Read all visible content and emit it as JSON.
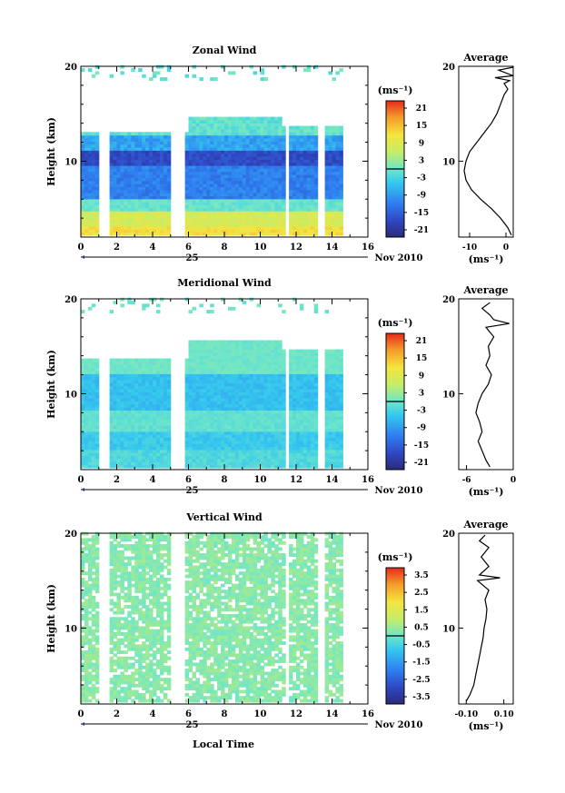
{
  "figure": {
    "xlabel": "Local Time",
    "date_day": "25",
    "date_month": "Nov 2010"
  },
  "chart_data": [
    {
      "type": "heatmap",
      "title": "Zonal Wind",
      "ylabel": "Height (km)",
      "xlim": [
        0,
        16
      ],
      "ylim": [
        2,
        20
      ],
      "x_ticks": [
        0,
        2,
        4,
        6,
        8,
        10,
        12,
        14,
        16
      ],
      "y_ticks": [
        10,
        20
      ],
      "data_gaps_hours": [
        [
          0.9,
          1.6
        ],
        [
          5.0,
          5.9
        ],
        [
          11.3,
          11.6
        ],
        [
          13.1,
          13.5
        ],
        [
          14.5,
          16
        ]
      ],
      "colorbar": {
        "unit": "(ms⁻¹)",
        "ticks": [
          "21",
          "15",
          "9",
          "3",
          "-3",
          "-9",
          "-15",
          "-21"
        ],
        "range": [
          -24,
          24
        ]
      },
      "profile": {
        "title": "Average",
        "unit": "(ms⁻¹)",
        "x_ticks": [
          "-10",
          "0"
        ],
        "xlim": [
          -13,
          2
        ],
        "y_ticks": [
          10,
          20
        ],
        "ylim": [
          2,
          20
        ],
        "points": [
          [
            1.5,
            2.2
          ],
          [
            0.5,
            3
          ],
          [
            -1.5,
            4
          ],
          [
            -4,
            5
          ],
          [
            -7,
            6
          ],
          [
            -9.5,
            7
          ],
          [
            -11,
            8
          ],
          [
            -11.5,
            9
          ],
          [
            -11,
            10
          ],
          [
            -10,
            11
          ],
          [
            -8,
            12
          ],
          [
            -6,
            13
          ],
          [
            -4,
            14
          ],
          [
            -2.5,
            15
          ],
          [
            -1.5,
            16
          ],
          [
            -0.5,
            17
          ],
          [
            0.5,
            17.6
          ],
          [
            -0.5,
            18.2
          ],
          [
            1,
            18.5
          ],
          [
            -3,
            18.8
          ],
          [
            2,
            19
          ],
          [
            0,
            19.3
          ],
          [
            -2,
            19.6
          ],
          [
            2,
            19.9
          ]
        ]
      }
    },
    {
      "type": "heatmap",
      "title": "Meridional Wind",
      "ylabel": "Height (km)",
      "xlim": [
        0,
        16
      ],
      "ylim": [
        2,
        20
      ],
      "x_ticks": [
        0,
        2,
        4,
        6,
        8,
        10,
        12,
        14,
        16
      ],
      "y_ticks": [
        10,
        20
      ],
      "data_gaps_hours": [
        [
          0.9,
          1.6
        ],
        [
          5.0,
          5.9
        ],
        [
          11.3,
          11.6
        ],
        [
          13.1,
          13.5
        ],
        [
          14.5,
          16
        ]
      ],
      "colorbar": {
        "unit": "(ms⁻¹)",
        "ticks": [
          "21",
          "15",
          "9",
          "3",
          "-3",
          "-9",
          "-15",
          "-21"
        ],
        "range": [
          -24,
          24
        ]
      },
      "profile": {
        "title": "Average",
        "unit": "(ms⁻¹)",
        "x_ticks": [
          "-6",
          "0"
        ],
        "xlim": [
          -7,
          0
        ],
        "y_ticks": [
          10,
          20
        ],
        "ylim": [
          2,
          20
        ],
        "points": [
          [
            -3,
            2.3
          ],
          [
            -3.5,
            3
          ],
          [
            -4,
            4
          ],
          [
            -4.5,
            5
          ],
          [
            -4,
            6
          ],
          [
            -4.3,
            7
          ],
          [
            -4.8,
            8
          ],
          [
            -4.5,
            9
          ],
          [
            -4,
            10
          ],
          [
            -3.2,
            11
          ],
          [
            -2.8,
            12
          ],
          [
            -3.5,
            13
          ],
          [
            -3,
            14
          ],
          [
            -3.2,
            15
          ],
          [
            -2.5,
            16
          ],
          [
            -3,
            16.5
          ],
          [
            -3.5,
            17
          ],
          [
            -0.5,
            17.4
          ],
          [
            -2.5,
            17.8
          ],
          [
            -3,
            18.3
          ],
          [
            -4,
            19
          ],
          [
            -3,
            19.6
          ]
        ]
      }
    },
    {
      "type": "heatmap",
      "title": "Vertical Wind",
      "ylabel": "Height (km)",
      "xlim": [
        0,
        16
      ],
      "ylim": [
        2,
        20
      ],
      "x_ticks": [
        0,
        2,
        4,
        6,
        8,
        10,
        12,
        14,
        16
      ],
      "y_ticks": [
        10,
        20
      ],
      "data_gaps_hours": [
        [
          0.9,
          1.6
        ],
        [
          5.0,
          5.9
        ],
        [
          11.3,
          11.6
        ],
        [
          13.1,
          13.5
        ],
        [
          14.5,
          16
        ]
      ],
      "colorbar": {
        "unit": "(ms⁻¹)",
        "ticks": [
          "3.5",
          "2.5",
          "1.5",
          "0.5",
          "-0.5",
          "-1.5",
          "-2.5",
          "-3.5"
        ],
        "range": [
          -4,
          4
        ]
      },
      "profile": {
        "title": "Average",
        "unit": "(ms⁻¹)",
        "x_ticks": [
          "-0.10",
          "0.10"
        ],
        "xlim": [
          -0.14,
          0.15
        ],
        "y_ticks": [
          10,
          20
        ],
        "ylim": [
          2,
          20
        ],
        "points": [
          [
            -0.1,
            2.3
          ],
          [
            -0.08,
            3
          ],
          [
            -0.06,
            4
          ],
          [
            -0.05,
            5
          ],
          [
            -0.04,
            6
          ],
          [
            -0.03,
            7
          ],
          [
            -0.02,
            8
          ],
          [
            -0.01,
            9
          ],
          [
            -0.005,
            10
          ],
          [
            0.005,
            11
          ],
          [
            0.01,
            12
          ],
          [
            0.0,
            13
          ],
          [
            0.02,
            14
          ],
          [
            -0.04,
            15
          ],
          [
            0.08,
            15.3
          ],
          [
            -0.03,
            15.6
          ],
          [
            0.02,
            16.5
          ],
          [
            -0.02,
            17.5
          ],
          [
            0.02,
            18.5
          ],
          [
            -0.03,
            19.2
          ],
          [
            0.0,
            19.8
          ]
        ]
      }
    }
  ]
}
